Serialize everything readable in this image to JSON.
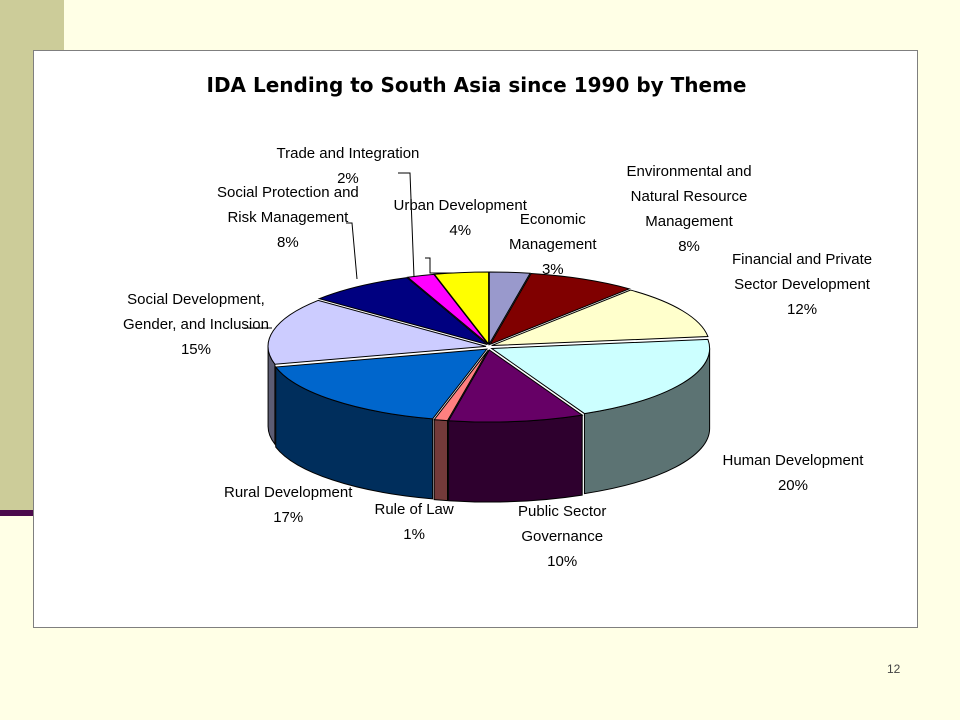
{
  "slide": {
    "page_number": "12"
  },
  "colors": {
    "background": "#FFFFE6",
    "side_bar": "#CCCC99",
    "rule": "#4B0A4B"
  },
  "chart_data": {
    "type": "pie",
    "title": "IDA Lending to South Asia since 1990 by Theme",
    "style": "3d-exploded",
    "slices": [
      {
        "lines": [
          "Economic",
          "Management"
        ],
        "pct_label": "3%",
        "value": 3,
        "color": "#9999CC"
      },
      {
        "lines": [
          "Environmental and",
          "Natural Resource",
          "Management"
        ],
        "pct_label": "8%",
        "value": 8,
        "color": "#800000"
      },
      {
        "lines": [
          "Financial and Private",
          "Sector Development"
        ],
        "pct_label": "12%",
        "value": 12,
        "color": "#FFFFCC"
      },
      {
        "lines": [
          "Human Development"
        ],
        "pct_label": "20%",
        "value": 20,
        "color": "#CCFFFF"
      },
      {
        "lines": [
          "Public Sector",
          "Governance"
        ],
        "pct_label": "10%",
        "value": 10,
        "color": "#660066"
      },
      {
        "lines": [
          "Rule of Law"
        ],
        "pct_label": "1%",
        "value": 1,
        "color": "#FF8080"
      },
      {
        "lines": [
          "Rural Development"
        ],
        "pct_label": "17%",
        "value": 17,
        "color": "#0066CC"
      },
      {
        "lines": [
          "Social Development,",
          "Gender, and Inclusion"
        ],
        "pct_label": "15%",
        "value": 15,
        "color": "#CCCCFF"
      },
      {
        "lines": [
          "Social Protection and",
          "Risk Management"
        ],
        "pct_label": "8%",
        "value": 8,
        "color": "#000080"
      },
      {
        "lines": [
          "Trade and Integration"
        ],
        "pct_label": "2%",
        "value": 2,
        "color": "#FF00FF"
      },
      {
        "lines": [
          "Urban Development"
        ],
        "pct_label": "4%",
        "value": 4,
        "color": "#FFFF00"
      }
    ]
  }
}
